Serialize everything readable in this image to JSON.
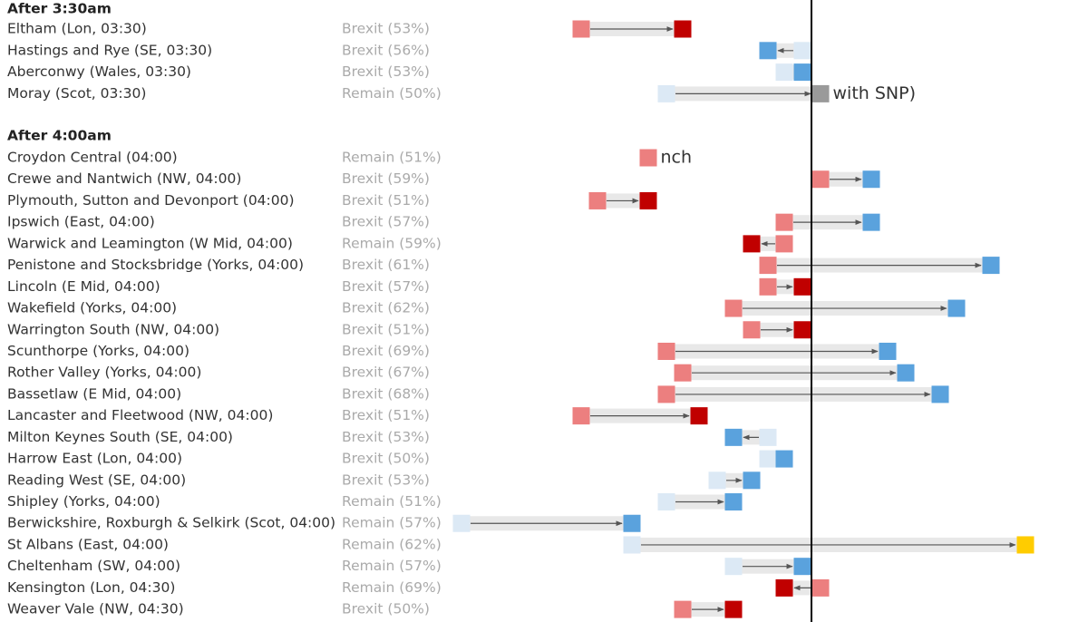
{
  "chart_data": {
    "type": "dumbbell",
    "xlim": [
      -20,
      15
    ],
    "reference": 0,
    "sections": [
      {
        "title": "After 3:30am",
        "rows": [
          {
            "name": "Eltham (Lon, 03:30)",
            "label": "Brexit (53%)",
            "from": -12.7,
            "to": -7.1,
            "from_color": "#ec7f7f",
            "to_color": "#c00000"
          },
          {
            "name": "Hastings and Rye (SE, 03:30)",
            "label": "Brexit (56%)",
            "from": -0.5,
            "to": -2.4,
            "from_color": "#dce9f5",
            "to_color": "#5aa2dd"
          },
          {
            "name": "Aberconwy (Wales, 03:30)",
            "label": "Brexit (53%)",
            "from": -1.5,
            "to": -0.5,
            "from_color": "#dce9f5",
            "to_color": "#5aa2dd"
          },
          {
            "name": "Moray (Scot, 03:30)",
            "label": "Remain (50%)",
            "from": -8,
            "to": 0.5,
            "from_color": "#dce9f5",
            "to_color": "#9a9a9a",
            "annotation": "with SNP)"
          }
        ]
      },
      {
        "title": "After 4:00am",
        "rows": [
          {
            "name": "Croydon Central (04:00)",
            "label": "Remain (51%)",
            "from": -9,
            "to": null,
            "from_color": "#ec7f7f",
            "to_color": null,
            "annotation": "nch"
          },
          {
            "name": "Crewe and Nantwich (NW, 04:00)",
            "label": "Brexit (59%)",
            "from": 0.5,
            "to": 3.3,
            "from_color": "#ec7f7f",
            "to_color": "#5aa2dd"
          },
          {
            "name": "Plymouth, Sutton and Devonport (04:00)",
            "label": "Brexit (51%)",
            "from": -11.8,
            "to": -9,
            "from_color": "#ec7f7f",
            "to_color": "#c00000"
          },
          {
            "name": "Ipswich (East, 04:00)",
            "label": "Brexit (57%)",
            "from": -1.5,
            "to": 3.3,
            "from_color": "#ec7f7f",
            "to_color": "#5aa2dd"
          },
          {
            "name": "Warwick and Leamington (W Mid, 04:00)",
            "label": "Remain (59%)",
            "from": -1.5,
            "to": -3.3,
            "from_color": "#ec7f7f",
            "to_color": "#c00000"
          },
          {
            "name": "Penistone and Stocksbridge (Yorks, 04:00)",
            "label": "Brexit (61%)",
            "from": -2.4,
            "to": 9.9,
            "from_color": "#ec7f7f",
            "to_color": "#5aa2dd"
          },
          {
            "name": "Lincoln (E Mid, 04:00)",
            "label": "Brexit (57%)",
            "from": -2.4,
            "to": -0.5,
            "from_color": "#ec7f7f",
            "to_color": "#c00000"
          },
          {
            "name": "Wakefield (Yorks, 04:00)",
            "label": "Brexit (62%)",
            "from": -4.3,
            "to": 8,
            "from_color": "#ec7f7f",
            "to_color": "#5aa2dd"
          },
          {
            "name": "Warrington South (NW, 04:00)",
            "label": "Brexit (51%)",
            "from": -3.3,
            "to": -0.5,
            "from_color": "#ec7f7f",
            "to_color": "#c00000"
          },
          {
            "name": "Scunthorpe (Yorks, 04:00)",
            "label": "Brexit (69%)",
            "from": -8,
            "to": 4.2,
            "from_color": "#ec7f7f",
            "to_color": "#5aa2dd"
          },
          {
            "name": "Rother Valley (Yorks, 04:00)",
            "label": "Brexit (67%)",
            "from": -7.1,
            "to": 5.2,
            "from_color": "#ec7f7f",
            "to_color": "#5aa2dd"
          },
          {
            "name": "Bassetlaw (E Mid, 04:00)",
            "label": "Brexit (68%)",
            "from": -8,
            "to": 7.1,
            "from_color": "#ec7f7f",
            "to_color": "#5aa2dd"
          },
          {
            "name": "Lancaster and Fleetwood (NW, 04:00)",
            "label": "Brexit (51%)",
            "from": -12.7,
            "to": -6.2,
            "from_color": "#ec7f7f",
            "to_color": "#c00000"
          },
          {
            "name": "Milton Keynes South (SE, 04:00)",
            "label": "Brexit (53%)",
            "from": -2.4,
            "to": -4.3,
            "from_color": "#dce9f5",
            "to_color": "#5aa2dd"
          },
          {
            "name": "Harrow East (Lon, 04:00)",
            "label": "Brexit (50%)",
            "from": -2.4,
            "to": -1.5,
            "from_color": "#dce9f5",
            "to_color": "#5aa2dd"
          },
          {
            "name": "Reading West (SE, 04:00)",
            "label": "Brexit (53%)",
            "from": -5.2,
            "to": -3.3,
            "from_color": "#dce9f5",
            "to_color": "#5aa2dd"
          },
          {
            "name": "Shipley (Yorks, 04:00)",
            "label": "Remain (51%)",
            "from": -8,
            "to": -4.3,
            "from_color": "#dce9f5",
            "to_color": "#5aa2dd"
          },
          {
            "name": "Berwickshire, Roxburgh & Selkirk (Scot, 04:00)",
            "label": "Remain (57%)",
            "from": -19.3,
            "to": -9.9,
            "from_color": "#dce9f5",
            "to_color": "#5aa2dd"
          },
          {
            "name": "St Albans (East, 04:00)",
            "label": "Remain (62%)",
            "from": -9.9,
            "to": 11.8,
            "from_color": "#dce9f5",
            "to_color": "#ffcc00"
          },
          {
            "name": "Cheltenham (SW, 04:00)",
            "label": "Remain (57%)",
            "from": -4.3,
            "to": -0.5,
            "from_color": "#dce9f5",
            "to_color": "#5aa2dd"
          },
          {
            "name": "Kensington (Lon, 04:30)",
            "label": "Remain (69%)",
            "from": 0.5,
            "to": -1.5,
            "from_color": "#ec7f7f",
            "to_color": "#c00000"
          },
          {
            "name": "Weaver Vale (NW, 04:30)",
            "label": "Brexit (50%)",
            "from": -7.1,
            "to": -4.3,
            "from_color": "#ec7f7f",
            "to_color": "#c00000"
          }
        ]
      }
    ]
  }
}
